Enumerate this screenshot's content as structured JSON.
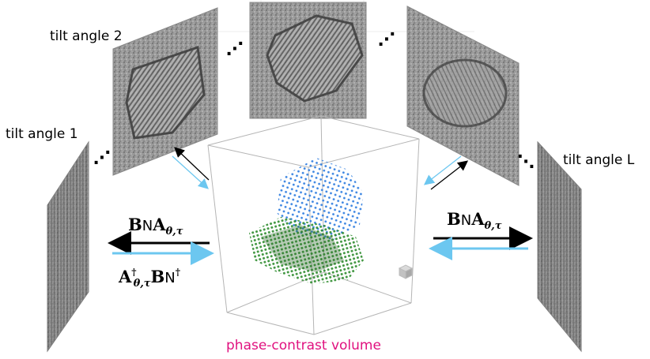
{
  "labels": {
    "tilt1": "tilt angle 1",
    "tilt2": "tilt angle 2",
    "tiltL": "tilt angle L",
    "caption": "phase-contrast volume"
  },
  "operators": {
    "forward_left": {
      "B": "B",
      "N": "N",
      "A": "A",
      "sub": "θ,τ"
    },
    "adjoint_left": {
      "A": "A",
      "sub": "θ,τ",
      "dagger": "†",
      "B": "B",
      "N": "N"
    },
    "forward_right": {
      "B": "B",
      "N": "N",
      "A": "A",
      "sub": "θ,τ"
    }
  },
  "ellipsis": "⋰",
  "colors": {
    "caption": "#e0117f",
    "forward_arrow": "#000000",
    "adjoint_arrow": "#6cc7f0",
    "blue_particle": "#2f7de0",
    "green_particle": "#2a8a2a"
  }
}
